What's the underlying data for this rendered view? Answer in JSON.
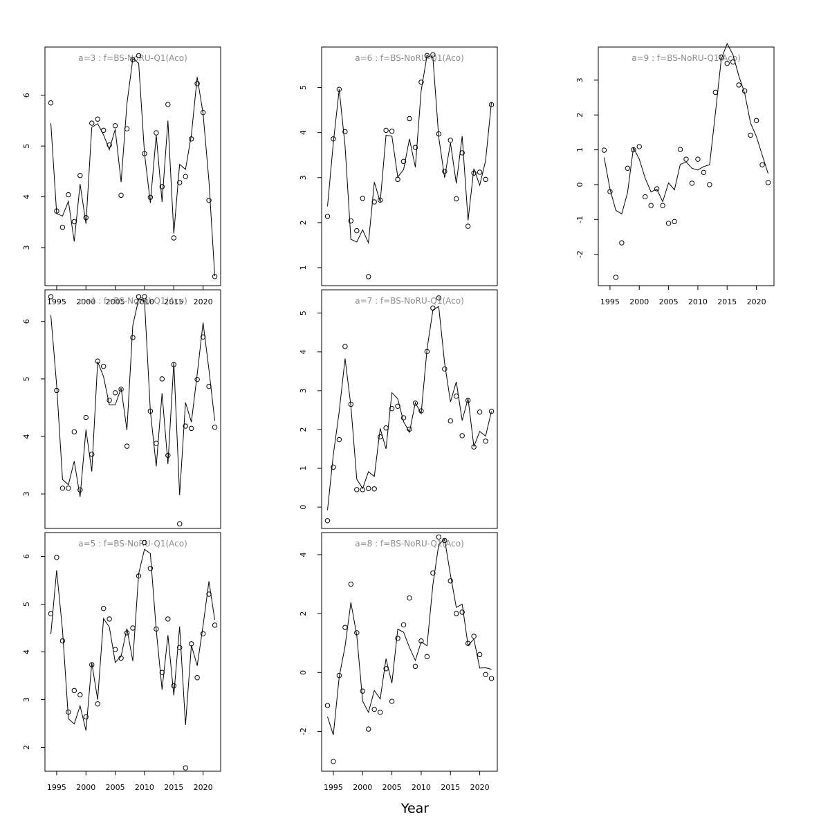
{
  "figure": {
    "xlabel": "Year",
    "line_color": "#000000",
    "point_color": "#000000",
    "title_color": "#8c8c8c"
  },
  "chart_data": [
    {
      "type": "line",
      "title": "a=3  :  f=BS-NoRU-Q1(Aco)",
      "xlim": [
        1993,
        2023
      ],
      "ylim": [
        2.25,
        6.95
      ],
      "yticks": [
        3,
        4,
        5,
        6
      ],
      "xticks": [
        1995,
        2000,
        2005,
        2010,
        2015,
        2020
      ],
      "show_xaxis": true,
      "x": [
        1994,
        1995,
        1996,
        1997,
        1998,
        1999,
        2000,
        2001,
        2002,
        2003,
        2004,
        2005,
        2006,
        2007,
        2008,
        2009,
        2010,
        2011,
        2012,
        2013,
        2014,
        2015,
        2016,
        2017,
        2018,
        2019,
        2020,
        2021,
        2022
      ],
      "observed": [
        5.85,
        3.72,
        3.4,
        4.04,
        3.51,
        4.42,
        3.59,
        5.45,
        5.53,
        5.31,
        5.02,
        5.4,
        4.03,
        5.34,
        6.7,
        6.78,
        4.85,
        3.99,
        5.26,
        4.2,
        5.82,
        3.19,
        4.28,
        4.4,
        5.14,
        6.23,
        5.66,
        3.93,
        2.43
      ],
      "fitted": [
        5.45,
        3.67,
        3.62,
        3.91,
        3.12,
        4.25,
        3.47,
        5.37,
        5.44,
        5.22,
        4.93,
        5.33,
        4.29,
        5.83,
        6.72,
        6.63,
        4.86,
        3.88,
        5.22,
        3.9,
        5.5,
        3.28,
        4.64,
        4.54,
        5.22,
        6.36,
        5.64,
        4.31,
        2.44
      ]
    },
    {
      "type": "line",
      "title": "a=4  :  f=BS-NoRU-Q1(Aco)",
      "xlim": [
        1993,
        2023
      ],
      "ylim": [
        2.4,
        6.55
      ],
      "yticks": [
        3,
        4,
        5,
        6
      ],
      "xticks": [
        1995,
        2000,
        2005,
        2010,
        2015,
        2020
      ],
      "show_xaxis": false,
      "x": [
        1994,
        1995,
        1996,
        1997,
        1998,
        1999,
        2000,
        2001,
        2002,
        2003,
        2004,
        2005,
        2006,
        2007,
        2008,
        2009,
        2010,
        2011,
        2012,
        2013,
        2014,
        2015,
        2016,
        2017,
        2018,
        2019,
        2020,
        2021,
        2022
      ],
      "observed": [
        6.43,
        4.8,
        3.1,
        3.1,
        4.08,
        3.07,
        4.33,
        3.69,
        5.31,
        5.22,
        4.63,
        4.76,
        4.82,
        3.83,
        5.72,
        6.43,
        6.43,
        4.44,
        3.88,
        5.0,
        3.67,
        5.25,
        2.48,
        4.18,
        4.14,
        4.99,
        5.73,
        4.87,
        4.16
      ],
      "fitted": [
        6.11,
        4.89,
        3.25,
        3.16,
        3.57,
        2.95,
        4.12,
        3.39,
        5.3,
        5.04,
        4.55,
        4.55,
        4.84,
        4.11,
        5.93,
        6.39,
        6.36,
        4.44,
        3.48,
        4.75,
        3.52,
        5.29,
        2.98,
        4.59,
        4.25,
        5.08,
        5.98,
        5.16,
        4.27
      ]
    },
    {
      "type": "line",
      "title": "a=5  :  f=BS-NoRU-Q1(Aco)",
      "xlim": [
        1993,
        2023
      ],
      "ylim": [
        1.5,
        6.5
      ],
      "yticks": [
        2,
        3,
        4,
        5,
        6
      ],
      "xticks": [
        1995,
        2000,
        2005,
        2010,
        2015,
        2020
      ],
      "show_xaxis": true,
      "x": [
        1994,
        1995,
        1996,
        1997,
        1998,
        1999,
        2000,
        2001,
        2002,
        2003,
        2004,
        2005,
        2006,
        2007,
        2008,
        2009,
        2010,
        2011,
        2012,
        2013,
        2014,
        2015,
        2016,
        2017,
        2018,
        2019,
        2020,
        2021,
        2022
      ],
      "observed": [
        4.8,
        5.98,
        4.23,
        2.74,
        3.19,
        3.1,
        2.64,
        3.73,
        2.91,
        4.91,
        4.69,
        4.05,
        3.87,
        4.4,
        4.5,
        5.59,
        6.29,
        5.75,
        4.48,
        3.57,
        4.69,
        3.29,
        4.09,
        1.57,
        4.17,
        3.46,
        4.38,
        5.21,
        4.56
      ],
      "fitted": [
        4.37,
        5.71,
        4.45,
        2.6,
        2.49,
        2.87,
        2.35,
        3.77,
        3.0,
        4.7,
        4.52,
        3.78,
        3.91,
        4.49,
        3.81,
        5.64,
        6.15,
        6.06,
        4.46,
        3.21,
        4.35,
        3.09,
        4.53,
        2.47,
        4.14,
        3.71,
        4.55,
        5.48,
        4.67
      ]
    },
    {
      "type": "line",
      "title": "a=6  :  f=BS-NoRU-Q1(Aco)",
      "xlim": [
        1993,
        2023
      ],
      "ylim": [
        0.6,
        5.9
      ],
      "yticks": [
        1,
        2,
        3,
        4,
        5
      ],
      "xticks": [
        1995,
        2000,
        2005,
        2010,
        2015,
        2020
      ],
      "show_xaxis": false,
      "x": [
        1994,
        1995,
        1996,
        1997,
        1998,
        1999,
        2000,
        2001,
        2002,
        2003,
        2004,
        2005,
        2006,
        2007,
        2008,
        2009,
        2010,
        2011,
        2012,
        2013,
        2014,
        2015,
        2016,
        2017,
        2018,
        2019,
        2020,
        2021,
        2022
      ],
      "observed": [
        2.14,
        3.86,
        4.96,
        4.02,
        2.04,
        1.82,
        2.54,
        0.8,
        2.46,
        2.5,
        4.05,
        4.03,
        2.96,
        3.36,
        4.31,
        3.67,
        5.12,
        5.71,
        5.73,
        3.97,
        3.14,
        3.83,
        2.53,
        3.55,
        1.92,
        3.1,
        3.12,
        2.96,
        4.62
      ],
      "fitted": [
        2.36,
        3.77,
        4.96,
        3.7,
        1.63,
        1.57,
        1.84,
        1.55,
        2.9,
        2.46,
        3.94,
        3.92,
        3.01,
        3.18,
        3.86,
        3.23,
        4.93,
        5.71,
        5.66,
        3.9,
        3.0,
        3.77,
        2.87,
        3.92,
        2.05,
        3.2,
        2.83,
        3.38,
        4.67
      ]
    },
    {
      "type": "line",
      "title": "a=7  :  f=BS-NoRU-Q1(Aco)",
      "xlim": [
        1993,
        2023
      ],
      "ylim": [
        -0.55,
        5.6
      ],
      "yticks": [
        0,
        1,
        2,
        3,
        4,
        5
      ],
      "xticks": [
        1995,
        2000,
        2005,
        2010,
        2015,
        2020
      ],
      "show_xaxis": false,
      "x": [
        1994,
        1995,
        1996,
        1997,
        1998,
        1999,
        2000,
        2001,
        2002,
        2003,
        2004,
        2005,
        2006,
        2007,
        2008,
        2009,
        2010,
        2011,
        2012,
        2013,
        2014,
        2015,
        2016,
        2017,
        2018,
        2019,
        2020,
        2021,
        2022
      ],
      "observed": [
        -0.35,
        1.03,
        1.74,
        4.14,
        2.65,
        0.45,
        0.45,
        0.48,
        0.47,
        1.81,
        2.04,
        2.54,
        2.6,
        2.3,
        2.01,
        2.68,
        2.48,
        4.01,
        5.13,
        5.39,
        3.56,
        2.22,
        2.86,
        1.84,
        2.75,
        1.55,
        2.45,
        1.7,
        2.47
      ],
      "fitted": [
        -0.08,
        1.35,
        2.46,
        3.83,
        2.61,
        0.72,
        0.48,
        0.91,
        0.79,
        2.03,
        1.5,
        2.95,
        2.79,
        2.2,
        1.93,
        2.69,
        2.41,
        4.07,
        5.08,
        5.17,
        3.71,
        2.71,
        3.23,
        2.23,
        2.8,
        1.56,
        1.95,
        1.83,
        2.47
      ]
    },
    {
      "type": "line",
      "title": "a=8  :  f=BS-NoRU-Q1(Aco)",
      "xlim": [
        1993,
        2023
      ],
      "ylim": [
        -3.35,
        4.75
      ],
      "yticks": [
        -2,
        0,
        2,
        4
      ],
      "xticks": [
        1995,
        2000,
        2005,
        2010,
        2015,
        2020
      ],
      "show_xaxis": true,
      "x": [
        1994,
        1995,
        1996,
        1997,
        1998,
        1999,
        2000,
        2001,
        2002,
        2003,
        2004,
        2005,
        2006,
        2007,
        2008,
        2009,
        2010,
        2011,
        2012,
        2013,
        2014,
        2015,
        2016,
        2017,
        2018,
        2019,
        2020,
        2021,
        2022
      ],
      "observed": [
        -1.12,
        -3.02,
        -0.1,
        1.53,
        3.0,
        1.35,
        -0.63,
        -1.92,
        -1.25,
        -1.35,
        0.13,
        -0.98,
        1.16,
        1.62,
        2.53,
        0.21,
        1.07,
        0.54,
        3.38,
        4.6,
        4.48,
        3.11,
        2.0,
        2.05,
        0.99,
        1.23,
        0.61,
        -0.07,
        -0.2
      ],
      "fitted": [
        -1.5,
        -2.12,
        -0.15,
        0.89,
        2.38,
        1.26,
        -0.97,
        -1.35,
        -0.61,
        -0.9,
        0.47,
        -0.36,
        1.47,
        1.37,
        0.85,
        0.41,
        1.04,
        0.91,
        2.99,
        4.34,
        4.53,
        3.31,
        2.21,
        2.32,
        0.92,
        1.14,
        0.15,
        0.16,
        0.11
      ]
    },
    {
      "type": "line",
      "title": "a=9  :  f=BS-NoRU-Q1(Aco)",
      "xlim": [
        1993,
        2023
      ],
      "ylim": [
        -2.9,
        3.95
      ],
      "yticks": [
        -2,
        -1,
        0,
        1,
        2,
        3
      ],
      "xticks": [
        1995,
        2000,
        2005,
        2010,
        2015,
        2020
      ],
      "show_xaxis": true,
      "x": [
        1994,
        1995,
        1996,
        1997,
        1998,
        1999,
        2000,
        2001,
        2002,
        2003,
        2004,
        2005,
        2006,
        2007,
        2008,
        2009,
        2010,
        2011,
        2012,
        2013,
        2014,
        2015,
        2016,
        2017,
        2018,
        2019,
        2020,
        2021,
        2022
      ],
      "observed": [
        0.99,
        -0.2,
        -2.66,
        -1.67,
        0.47,
        1.0,
        1.09,
        -0.35,
        -0.6,
        -0.12,
        -0.6,
        -1.11,
        -1.06,
        1.01,
        0.73,
        0.04,
        0.73,
        0.35,
        0.0,
        2.65,
        3.66,
        3.48,
        3.52,
        2.86,
        2.69,
        1.42,
        1.84,
        0.57,
        0.06
      ],
      "fitted": [
        0.78,
        -0.13,
        -0.74,
        -0.84,
        -0.23,
        1.06,
        0.73,
        0.19,
        -0.21,
        -0.13,
        -0.49,
        0.05,
        -0.15,
        0.58,
        0.65,
        0.47,
        0.42,
        0.52,
        0.57,
        2.05,
        3.6,
        4.05,
        3.73,
        3.12,
        2.62,
        1.77,
        1.38,
        0.84,
        0.32
      ]
    }
  ]
}
